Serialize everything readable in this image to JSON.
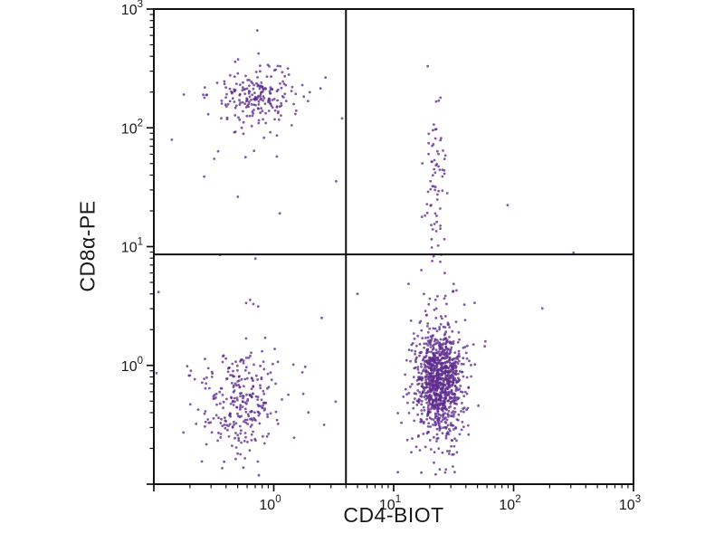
{
  "chart_data": {
    "type": "scatter",
    "title": "",
    "xlabel": "CD4-BIOT",
    "ylabel": "CD8α-PE",
    "x_scale": "log",
    "y_scale": "log",
    "xlim": [
      0.1,
      1000
    ],
    "ylim": [
      0.1,
      1000
    ],
    "x_tick_exponents": [
      0,
      1,
      2,
      3
    ],
    "y_tick_exponents": [
      0,
      1,
      2,
      3
    ],
    "grid": false,
    "legend": false,
    "background_color": "#ffffff",
    "point_color": "#5e2b8e",
    "axis_color": "#111111",
    "quadrant_gate": {
      "x": 4.0,
      "y": 8.6
    },
    "populations": [
      {
        "name": "CD8-positive upper-left core",
        "cx": -0.13,
        "cy": 2.27,
        "sdx": 0.16,
        "sdy": 0.1,
        "count": 170
      },
      {
        "name": "CD8-positive upper-left halo",
        "cx": -0.15,
        "cy": 2.18,
        "sdx": 0.25,
        "sdy": 0.22,
        "count": 55
      },
      {
        "name": "double-positive upper-right streak",
        "cx": 1.35,
        "cy": 1.55,
        "sdx": 0.05,
        "sdy": 0.34,
        "count": 70
      },
      {
        "name": "CD4-positive lower-right core",
        "cx": 1.38,
        "cy": -0.12,
        "sdx": 0.09,
        "sdy": 0.21,
        "count": 800
      },
      {
        "name": "CD4-positive lower-right halo",
        "cx": 1.38,
        "cy": -0.18,
        "sdx": 0.13,
        "sdy": 0.4,
        "count": 260
      },
      {
        "name": "double-negative lower-left",
        "cx": -0.28,
        "cy": -0.33,
        "sdx": 0.17,
        "sdy": 0.23,
        "count": 270
      },
      {
        "name": "sparse background",
        "cx": -0.15,
        "cy": -0.05,
        "sdx": 0.45,
        "sdy": 0.55,
        "count": 25
      }
    ],
    "outlier_points_log10": [
      [
        2.5,
        0.95
      ],
      [
        2.24,
        0.48
      ],
      [
        0.57,
        2.08
      ],
      [
        0.52,
        1.55
      ],
      [
        0.4,
        0.4
      ],
      [
        0.05,
        1.28
      ],
      [
        -0.75,
        2.28
      ],
      [
        -0.85,
        1.9
      ],
      [
        -0.58,
        1.59
      ],
      [
        -0.3,
        1.42
      ],
      [
        0.42,
        -0.5
      ],
      [
        0.3,
        2.3
      ],
      [
        1.95,
        1.35
      ]
    ]
  }
}
